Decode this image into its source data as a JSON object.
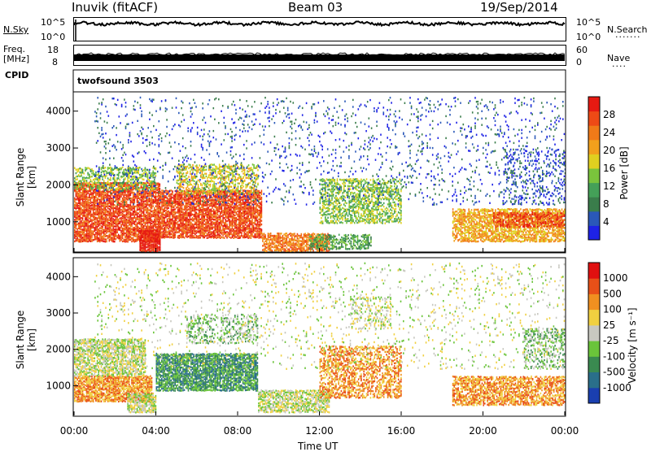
{
  "header": {
    "station": "Inuvik (fitACF)",
    "beam": "Beam 03",
    "date": "19/Sep/2014"
  },
  "strips": {
    "nsky_label": "N.Sky",
    "nsky_ticks": [
      "10^5",
      "10^0"
    ],
    "nsearch_label": "N.Search",
    "nsearch_ticks": [
      "10^5",
      "10^0"
    ],
    "freq_label": "Freq.",
    "freq_unit": "[MHz]",
    "freq_ticks": [
      "18",
      "8"
    ],
    "nave_label": "Nave",
    "nave_ticks": [
      "60",
      "0"
    ],
    "cpid_label": "CPID",
    "cpid_value": "twofsound 3503"
  },
  "chart_data": [
    {
      "type": "heatmap",
      "title": "",
      "xlabel": "",
      "ylabel": "Slant Range [km]",
      "xlim": [
        0,
        24
      ],
      "ylim": [
        180,
        4500
      ],
      "y_ticks": [
        "1000",
        "2000",
        "3000",
        "4000"
      ],
      "colorbar": {
        "label": "Power [dB]",
        "ticks": [
          "4",
          "8",
          "12",
          "16",
          "20",
          "24",
          "28"
        ],
        "colors": [
          "#1e22e6",
          "#2a58b8",
          "#3a7d4b",
          "#44a058",
          "#7ac43c",
          "#e0d020",
          "#f2a01c",
          "#f07a18",
          "#ee4a16",
          "#e61a12"
        ]
      }
    },
    {
      "type": "heatmap",
      "title": "",
      "xlabel": "Time UT",
      "ylabel": "Slant Range [km]",
      "xlim": [
        0,
        24
      ],
      "ylim": [
        180,
        4500
      ],
      "x_ticks": [
        "00:00",
        "04:00",
        "08:00",
        "12:00",
        "16:00",
        "20:00",
        "00:00"
      ],
      "y_ticks": [
        "1000",
        "2000",
        "3000",
        "4000"
      ],
      "colorbar": {
        "label": "Velocity [m s⁻¹]",
        "ticks": [
          "1000",
          "500",
          "100",
          "25",
          "-25",
          "-100",
          "-500",
          "-1000"
        ],
        "colors": [
          "#1a3fb0",
          "#2a6f8a",
          "#3a8a50",
          "#6ac43a",
          "#c8c8c0",
          "#f0d040",
          "#f09020",
          "#e85018",
          "#e01010"
        ]
      }
    }
  ]
}
